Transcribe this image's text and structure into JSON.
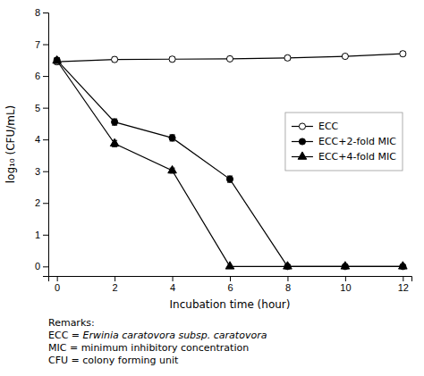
{
  "chart_data": {
    "type": "line",
    "x": [
      0,
      2,
      4,
      6,
      8,
      10,
      12
    ],
    "series": [
      {
        "name": "ECC",
        "color": "#000000",
        "marker": "open-circle",
        "values": [
          6.45,
          6.52,
          6.53,
          6.54,
          6.57,
          6.62,
          6.7
        ],
        "errors": [
          0.08,
          0.07,
          0.07,
          0.07,
          0.07,
          0.07,
          0.07
        ]
      },
      {
        "name": "ECC+2-fold MIC",
        "color": "#000000",
        "marker": "circle",
        "values": [
          6.5,
          4.55,
          4.05,
          2.75,
          0.0,
          0.0,
          0.0
        ],
        "errors": [
          0.08,
          0.1,
          0.1,
          0.1,
          0.0,
          0.0,
          0.0
        ]
      },
      {
        "name": "ECC+4-fold MIC",
        "color": "#000000",
        "marker": "triangle",
        "values": [
          6.48,
          3.87,
          3.02,
          0.0,
          0.0,
          0.0,
          0.0
        ],
        "errors": [
          0.08,
          0.1,
          0.08,
          0.0,
          0.0,
          0.0,
          0.0
        ]
      }
    ],
    "xlabel": "Incubation time (hour)",
    "ylabel": "log₁₀ (CFU/mL)",
    "xlim": [
      -0.3,
      12.3
    ],
    "ylim": [
      -0.3,
      8
    ],
    "xticks": [
      0,
      2,
      4,
      6,
      8,
      10,
      12
    ],
    "yticks": [
      0,
      1,
      2,
      3,
      4,
      5,
      6,
      7,
      8
    ],
    "grid": false,
    "legend": "right",
    "annotations": [
      "Remarks:",
      "ECC = ",
      "Erwinia caratovora subsp. caratovora",
      "MIC = minimum inhibitory concentration",
      "CFU = colony forming unit"
    ]
  }
}
